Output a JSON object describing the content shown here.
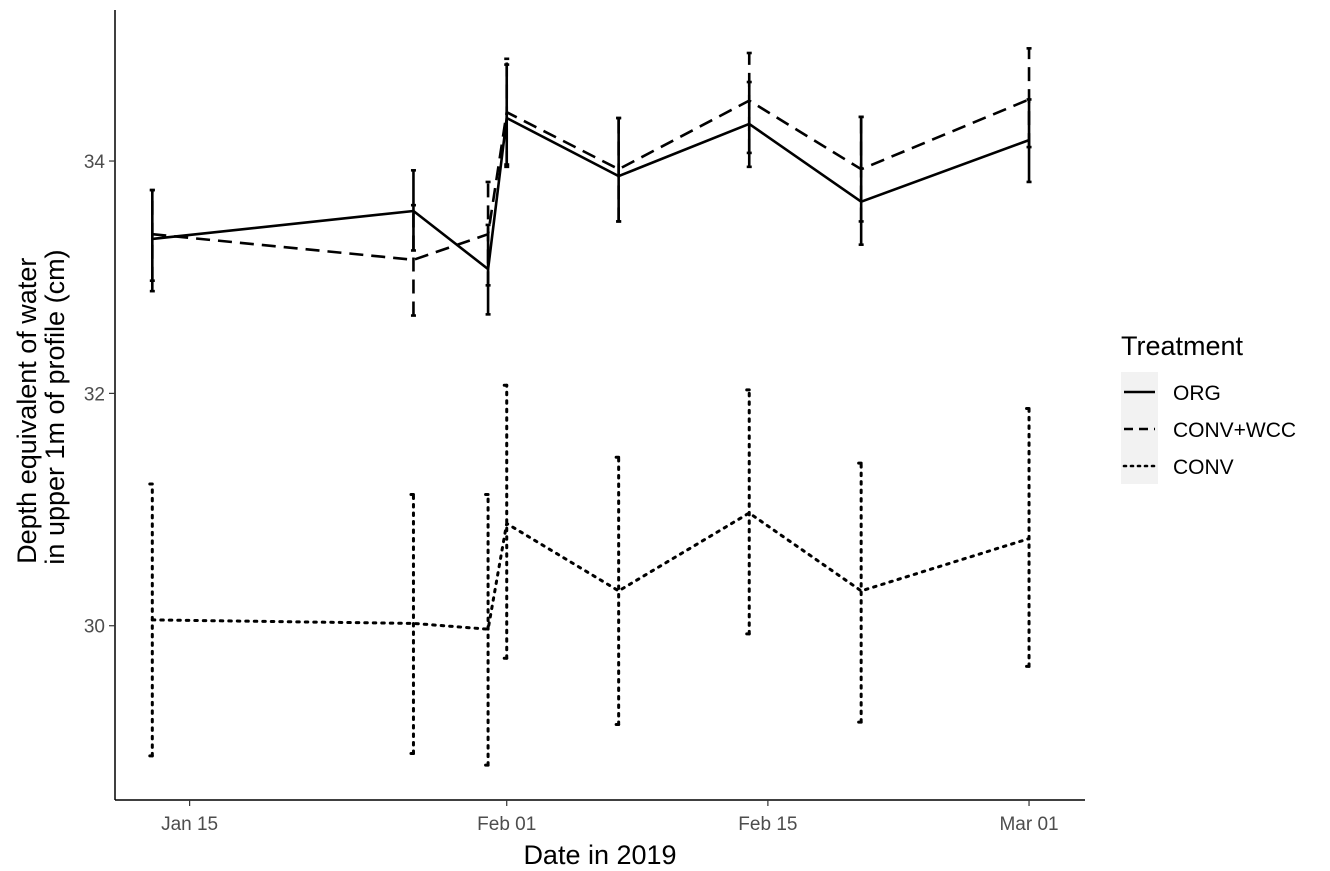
{
  "chart_data": {
    "type": "line",
    "title": "",
    "xlabel": "Date in 2019",
    "ylabel_lines": [
      "Depth equivalent of water",
      "in upper 1m of profile (cm)"
    ],
    "x_ticks": [
      "2019-01-15",
      "2019-02-01",
      "2019-02-15",
      "2019-03-01"
    ],
    "x_tick_labels": [
      "Jan 15",
      "Feb 01",
      "Feb 15",
      "Mar 01"
    ],
    "xlim": [
      "2019-01-11",
      "2019-03-04"
    ],
    "y_ticks": [
      30,
      32,
      34
    ],
    "y_tick_labels": [
      "30",
      "32",
      "34"
    ],
    "ylim": [
      28.5,
      35.3
    ],
    "grid": false,
    "legend": {
      "title": "Treatment",
      "position": "right",
      "entries": [
        {
          "name": "ORG",
          "style": "solid"
        },
        {
          "name": "CONV+WCC",
          "style": "dashed"
        },
        {
          "name": "CONV",
          "style": "dotted"
        }
      ]
    },
    "series": [
      {
        "name": "ORG",
        "style": "solid",
        "color": "#000000",
        "points": [
          {
            "x": "2019-01-13",
            "y": 33.33,
            "ymin": 32.88,
            "ymax": 33.75
          },
          {
            "x": "2019-01-27",
            "y": 33.57,
            "ymin": 33.23,
            "ymax": 33.92
          },
          {
            "x": "2019-01-31",
            "y": 33.07,
            "ymin": 32.68,
            "ymax": 33.45
          },
          {
            "x": "2019-02-01",
            "y": 34.37,
            "ymin": 33.95,
            "ymax": 34.83
          },
          {
            "x": "2019-02-07",
            "y": 33.87,
            "ymin": 33.48,
            "ymax": 34.37
          },
          {
            "x": "2019-02-14",
            "y": 34.32,
            "ymin": 33.95,
            "ymax": 34.68
          },
          {
            "x": "2019-02-20",
            "y": 33.65,
            "ymin": 33.28,
            "ymax": 34.38
          },
          {
            "x": "2019-03-01",
            "y": 34.18,
            "ymin": 33.82,
            "ymax": 34.53
          }
        ]
      },
      {
        "name": "CONV+WCC",
        "style": "dashed",
        "color": "#000000",
        "points": [
          {
            "x": "2019-01-13",
            "y": 33.37,
            "ymin": 32.97,
            "ymax": 33.75
          },
          {
            "x": "2019-01-27",
            "y": 33.15,
            "ymin": 32.67,
            "ymax": 33.62
          },
          {
            "x": "2019-01-31",
            "y": 33.37,
            "ymin": 32.93,
            "ymax": 33.82
          },
          {
            "x": "2019-02-01",
            "y": 34.42,
            "ymin": 33.97,
            "ymax": 34.88
          },
          {
            "x": "2019-02-07",
            "y": 33.93,
            "ymin": 33.48,
            "ymax": 34.37
          },
          {
            "x": "2019-02-14",
            "y": 34.52,
            "ymin": 34.07,
            "ymax": 34.93
          },
          {
            "x": "2019-02-20",
            "y": 33.93,
            "ymin": 33.48,
            "ymax": 34.38
          },
          {
            "x": "2019-03-01",
            "y": 34.53,
            "ymin": 34.12,
            "ymax": 34.97
          }
        ]
      },
      {
        "name": "CONV",
        "style": "dotted",
        "color": "#000000",
        "points": [
          {
            "x": "2019-01-13",
            "y": 30.05,
            "ymin": 28.88,
            "ymax": 31.22
          },
          {
            "x": "2019-01-27",
            "y": 30.02,
            "ymin": 28.9,
            "ymax": 31.13
          },
          {
            "x": "2019-01-31",
            "y": 29.97,
            "ymin": 28.8,
            "ymax": 31.13
          },
          {
            "x": "2019-02-01",
            "y": 30.88,
            "ymin": 29.72,
            "ymax": 32.07
          },
          {
            "x": "2019-02-07",
            "y": 30.3,
            "ymin": 29.15,
            "ymax": 31.45
          },
          {
            "x": "2019-02-14",
            "y": 30.97,
            "ymin": 29.93,
            "ymax": 32.03
          },
          {
            "x": "2019-02-20",
            "y": 30.3,
            "ymin": 29.17,
            "ymax": 31.4
          },
          {
            "x": "2019-03-01",
            "y": 30.75,
            "ymin": 29.65,
            "ymax": 31.87
          }
        ]
      }
    ]
  }
}
